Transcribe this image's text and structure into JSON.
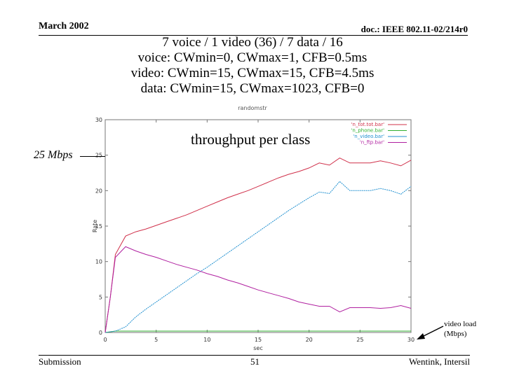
{
  "header": {
    "date": "March 2002",
    "doc": "doc.: IEEE 802.11-02/214r0"
  },
  "title_lines": [
    "7 voice / 1 video (36) / 7 data / 16",
    "voice: CWmin=0, CWmax=1, CFB=0.5ms",
    "video: CWmin=15, CWmax=15, CFB=4.5ms",
    "data: CWmin=15, CWmax=1023, CFB=0"
  ],
  "plot_tag": "randomstr",
  "annotations": {
    "throughput": "throughput per class",
    "mbps25": "25 Mbps",
    "videoload_line1": "video load",
    "videoload_line2": "(Mbps)"
  },
  "footer": {
    "left": "Submission",
    "page": "51",
    "right": "Wentink, Intersil"
  },
  "colors": {
    "tot": "#d0304a",
    "phone": "#30b030",
    "video": "#2090d0",
    "ftp": "#b020a0"
  },
  "chart_data": {
    "type": "line",
    "xlabel": "sec",
    "ylabel": "Rate",
    "xlim": [
      0,
      30
    ],
    "ylim": [
      0,
      30
    ],
    "xticks": [
      0,
      5,
      10,
      15,
      20,
      25,
      30
    ],
    "yticks": [
      0,
      5,
      10,
      15,
      20,
      25,
      30
    ],
    "legend_position": "top-right",
    "series": [
      {
        "name": "'n_tot.tot.bar'",
        "color": "#d0304a",
        "x": [
          0,
          0.5,
          1,
          2,
          3,
          4,
          5,
          6,
          7,
          8,
          9,
          10,
          11,
          12,
          13,
          14,
          15,
          16,
          17,
          18,
          19,
          20,
          21,
          22,
          23,
          24,
          25,
          26,
          27,
          28,
          29,
          30
        ],
        "y": [
          0,
          5,
          11,
          13.6,
          14.2,
          14.6,
          15.1,
          15.6,
          16.1,
          16.6,
          17.2,
          17.8,
          18.4,
          19,
          19.5,
          20,
          20.6,
          21.2,
          21.8,
          22.3,
          22.7,
          23.2,
          23.9,
          23.6,
          24.6,
          23.9,
          23.9,
          23.9,
          24.2,
          23.9,
          23.5,
          24.3
        ]
      },
      {
        "name": "'n_phone.bar'",
        "color": "#30b030",
        "x": [
          0,
          1,
          30
        ],
        "y": [
          0,
          0.2,
          0.2
        ]
      },
      {
        "name": "'n_video.bar'",
        "color": "#2090d0",
        "x": [
          0,
          1,
          2,
          3,
          4,
          5,
          6,
          7,
          8,
          9,
          10,
          11,
          12,
          13,
          14,
          15,
          16,
          17,
          18,
          19,
          20,
          21,
          22,
          23,
          24,
          25,
          26,
          27,
          28,
          29,
          30
        ],
        "y": [
          0,
          0.2,
          0.8,
          2.2,
          3.3,
          4.3,
          5.3,
          6.3,
          7.3,
          8.3,
          9.2,
          10.2,
          11.2,
          12.2,
          13.2,
          14.2,
          15.2,
          16.2,
          17.2,
          18.1,
          19,
          19.8,
          19.6,
          21.3,
          20,
          20,
          20,
          20.3,
          20,
          19.5,
          20.6
        ]
      },
      {
        "name": "'n_ftp.bar'",
        "color": "#b020a0",
        "x": [
          0,
          0.5,
          1,
          2,
          3,
          4,
          5,
          6,
          7,
          8,
          9,
          10,
          11,
          12,
          13,
          14,
          15,
          16,
          17,
          18,
          19,
          20,
          21,
          22,
          23,
          24,
          25,
          26,
          27,
          28,
          29,
          30
        ],
        "y": [
          0,
          5,
          10.6,
          12.1,
          11.5,
          11,
          10.6,
          10.1,
          9.6,
          9.2,
          8.8,
          8.3,
          7.9,
          7.4,
          7,
          6.5,
          6,
          5.6,
          5.2,
          4.8,
          4.3,
          4,
          3.7,
          3.7,
          2.9,
          3.5,
          3.5,
          3.5,
          3.4,
          3.5,
          3.8,
          3.4
        ]
      }
    ]
  }
}
